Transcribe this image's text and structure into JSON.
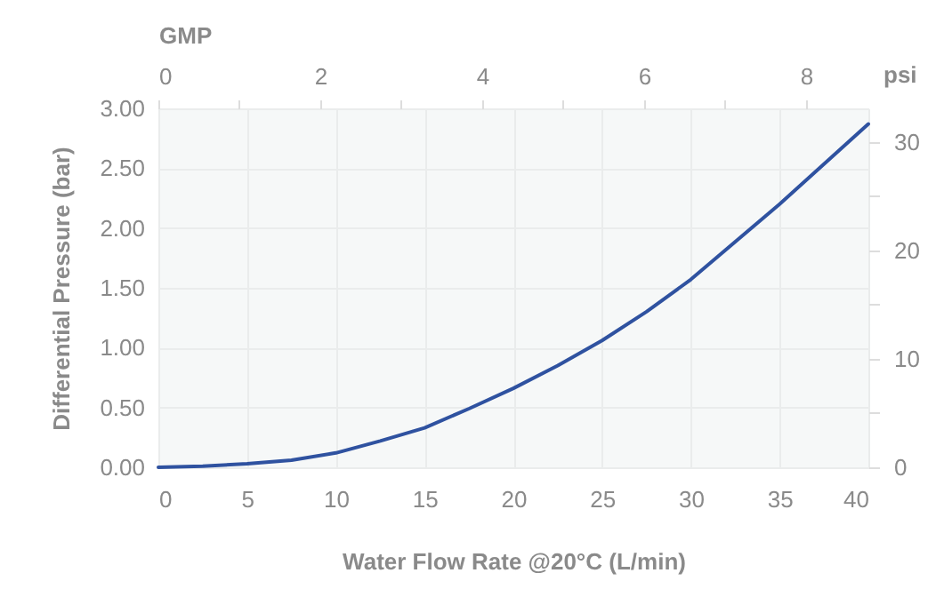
{
  "chart_data": {
    "type": "line",
    "xlabel": "Water Flow Rate @20°C (L/min)",
    "ylabel": "Differential Pressure  (bar)",
    "y2label": "psi",
    "x2label": "GMP",
    "x": [
      0,
      2.5,
      5,
      7.5,
      10,
      12.5,
      15,
      17.5,
      20,
      22.5,
      25,
      27.5,
      30,
      35,
      40
    ],
    "series": [
      {
        "color": "#2f52a0",
        "values": [
          0,
          0.01,
          0.03,
          0.06,
          0.12,
          0.22,
          0.33,
          0.49,
          0.66,
          0.85,
          1.06,
          1.3,
          1.57,
          2.2,
          2.87
        ]
      }
    ],
    "xlim": [
      0,
      40
    ],
    "xticks": [
      0,
      5,
      10,
      15,
      20,
      25,
      30,
      35,
      40
    ],
    "ylim": [
      0,
      3
    ],
    "yticks": [
      {
        "value": 0,
        "label": "0.00"
      },
      {
        "value": 0.5,
        "label": "0.50"
      },
      {
        "value": 1,
        "label": "1.00"
      },
      {
        "value": 1.5,
        "label": "1.50"
      },
      {
        "value": 2,
        "label": "2.00"
      },
      {
        "value": 2.5,
        "label": "2.50"
      },
      {
        "value": 3,
        "label": "3.00"
      }
    ],
    "y2lim": [
      0,
      33.1
    ],
    "y2ticks": [
      0,
      {
        "value": 5,
        "label": null
      },
      10,
      {
        "value": 15,
        "label": null
      },
      20,
      {
        "value": 25,
        "label": null
      },
      30
    ],
    "x2lim": [
      0,
      8.77
    ],
    "x2ticks": [
      0,
      {
        "value": 1,
        "label": null
      },
      2,
      {
        "value": 3,
        "label": null
      },
      4,
      {
        "value": 5,
        "label": null
      },
      6,
      {
        "value": 7,
        "label": null
      },
      8
    ],
    "grid": true,
    "marker": "none",
    "line_style": "solid"
  }
}
